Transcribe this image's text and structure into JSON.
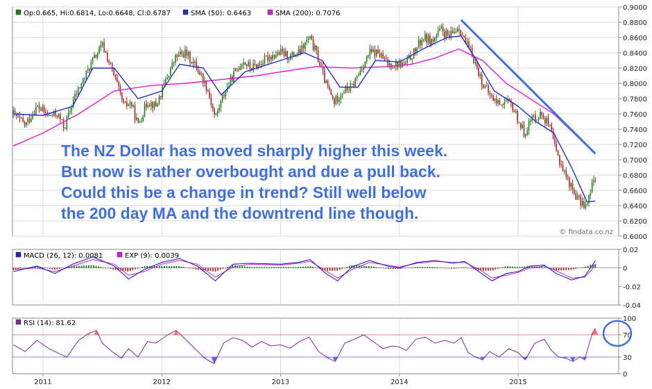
{
  "colors": {
    "up": "#1a7f1a",
    "down": "#b22222",
    "sma50": "#1f2fd0",
    "sma200": "#e020d8",
    "trendline": "#3f6fe0",
    "macd": "#2020c0",
    "exp": "#d020d0",
    "rsi": "#7a2a9a",
    "rsi_hot": "#ff7070",
    "rsi_cold": "#6060ff",
    "grid": "#d8d8d8"
  },
  "annotation": {
    "lines": [
      "The NZ Dollar has moved sharply higher this week.",
      "But now is rather overbought and due a pull back.",
      "Could this be a change in trend? Still well below",
      "the 200 day MA and the downtrend line though."
    ]
  },
  "watermark": "© findata.co.nz",
  "chart_data": [
    {
      "type": "candlestick",
      "legend": {
        "ohlc": "Op:0.665, Hi:0.6814, Lo:0.6648, Cl:0.6787",
        "sma50": "SMA (50): 0.6463",
        "sma200": "SMA (200): 0.7076"
      },
      "ylim": [
        0.6,
        0.9
      ],
      "y_ticks": [
        "0.9000",
        "0.8800",
        "0.8600",
        "0.8400",
        "0.8200",
        "0.8000",
        "0.7800",
        "0.7600",
        "0.7400",
        "0.7200",
        "0.7000",
        "0.6800",
        "0.6600",
        "0.6400",
        "0.6200",
        "0.6000"
      ],
      "x_ticks": [
        "2011",
        "2012",
        "2013",
        "2014",
        "2015"
      ],
      "price_path": [
        [
          2010.75,
          0.76
        ],
        [
          2010.85,
          0.745
        ],
        [
          2010.95,
          0.77
        ],
        [
          2011.05,
          0.757
        ],
        [
          2011.12,
          0.76
        ],
        [
          2011.18,
          0.742
        ],
        [
          2011.26,
          0.78
        ],
        [
          2011.34,
          0.805
        ],
        [
          2011.42,
          0.83
        ],
        [
          2011.5,
          0.85
        ],
        [
          2011.55,
          0.83
        ],
        [
          2011.62,
          0.8
        ],
        [
          2011.68,
          0.77
        ],
        [
          2011.74,
          0.775
        ],
        [
          2011.8,
          0.745
        ],
        [
          2011.88,
          0.777
        ],
        [
          2011.95,
          0.77
        ],
        [
          2012.05,
          0.81
        ],
        [
          2012.12,
          0.835
        ],
        [
          2012.2,
          0.84
        ],
        [
          2012.3,
          0.82
        ],
        [
          2012.38,
          0.795
        ],
        [
          2012.45,
          0.755
        ],
        [
          2012.52,
          0.785
        ],
        [
          2012.6,
          0.81
        ],
        [
          2012.68,
          0.83
        ],
        [
          2012.75,
          0.82
        ],
        [
          2012.82,
          0.825
        ],
        [
          2012.9,
          0.835
        ],
        [
          2013,
          0.84
        ],
        [
          2013.08,
          0.835
        ],
        [
          2013.16,
          0.84
        ],
        [
          2013.24,
          0.86
        ],
        [
          2013.3,
          0.84
        ],
        [
          2013.38,
          0.8
        ],
        [
          2013.45,
          0.775
        ],
        [
          2013.52,
          0.79
        ],
        [
          2013.6,
          0.795
        ],
        [
          2013.68,
          0.82
        ],
        [
          2013.75,
          0.84
        ],
        [
          2013.82,
          0.84
        ],
        [
          2013.9,
          0.825
        ],
        [
          2014,
          0.825
        ],
        [
          2014.05,
          0.825
        ],
        [
          2014.12,
          0.84
        ],
        [
          2014.2,
          0.86
        ],
        [
          2014.28,
          0.855
        ],
        [
          2014.35,
          0.87
        ],
        [
          2014.42,
          0.86
        ],
        [
          2014.5,
          0.875
        ],
        [
          2014.55,
          0.855
        ],
        [
          2014.62,
          0.835
        ],
        [
          2014.7,
          0.8
        ],
        [
          2014.76,
          0.785
        ],
        [
          2014.82,
          0.775
        ],
        [
          2014.9,
          0.775
        ],
        [
          2014.95,
          0.77
        ],
        [
          2015.05,
          0.735
        ],
        [
          2015.12,
          0.755
        ],
        [
          2015.2,
          0.76
        ],
        [
          2015.26,
          0.745
        ],
        [
          2015.32,
          0.71
        ],
        [
          2015.4,
          0.68
        ],
        [
          2015.46,
          0.66
        ],
        [
          2015.52,
          0.645
        ],
        [
          2015.58,
          0.64
        ],
        [
          2015.62,
          0.665
        ],
        [
          2015.65,
          0.679
        ]
      ],
      "sma50_path": [
        [
          2010.75,
          0.76
        ],
        [
          2011,
          0.758
        ],
        [
          2011.25,
          0.77
        ],
        [
          2011.42,
          0.82
        ],
        [
          2011.6,
          0.82
        ],
        [
          2011.8,
          0.78
        ],
        [
          2012,
          0.79
        ],
        [
          2012.15,
          0.825
        ],
        [
          2012.35,
          0.82
        ],
        [
          2012.5,
          0.785
        ],
        [
          2012.7,
          0.815
        ],
        [
          2013,
          0.83
        ],
        [
          2013.2,
          0.84
        ],
        [
          2013.35,
          0.83
        ],
        [
          2013.5,
          0.795
        ],
        [
          2013.65,
          0.795
        ],
        [
          2013.8,
          0.83
        ],
        [
          2014,
          0.828
        ],
        [
          2014.2,
          0.845
        ],
        [
          2014.4,
          0.86
        ],
        [
          2014.52,
          0.862
        ],
        [
          2014.65,
          0.83
        ],
        [
          2014.8,
          0.79
        ],
        [
          2015,
          0.77
        ],
        [
          2015.15,
          0.75
        ],
        [
          2015.3,
          0.735
        ],
        [
          2015.45,
          0.69
        ],
        [
          2015.58,
          0.645
        ],
        [
          2015.65,
          0.646
        ]
      ],
      "sma200_path": [
        [
          2010.75,
          0.718
        ],
        [
          2011,
          0.735
        ],
        [
          2011.3,
          0.76
        ],
        [
          2011.6,
          0.79
        ],
        [
          2011.9,
          0.797
        ],
        [
          2012.2,
          0.8
        ],
        [
          2012.5,
          0.805
        ],
        [
          2012.8,
          0.81
        ],
        [
          2013,
          0.815
        ],
        [
          2013.3,
          0.822
        ],
        [
          2013.6,
          0.82
        ],
        [
          2013.9,
          0.822
        ],
        [
          2014.1,
          0.825
        ],
        [
          2014.3,
          0.833
        ],
        [
          2014.5,
          0.845
        ],
        [
          2014.7,
          0.83
        ],
        [
          2014.9,
          0.8
        ],
        [
          2015.1,
          0.78
        ],
        [
          2015.3,
          0.76
        ],
        [
          2015.5,
          0.73
        ],
        [
          2015.65,
          0.708
        ]
      ],
      "trendline": [
        [
          2014.52,
          0.883
        ],
        [
          2015.65,
          0.708
        ]
      ]
    },
    {
      "type": "line",
      "legend": {
        "macd": "MACD (26, 12): 0.0081",
        "exp": "EXP (9): 0.0039"
      },
      "ylim": [
        -0.04,
        0.02
      ],
      "y_ticks": [
        "0.02",
        "0",
        "-0.02",
        "-0.04"
      ],
      "macd_path": [
        [
          2010.75,
          -0.004
        ],
        [
          2010.95,
          0.002
        ],
        [
          2011.1,
          -0.006
        ],
        [
          2011.25,
          0.004
        ],
        [
          2011.42,
          0.012
        ],
        [
          2011.6,
          0.002
        ],
        [
          2011.72,
          -0.012
        ],
        [
          2011.85,
          -0.002
        ],
        [
          2012,
          0.006
        ],
        [
          2012.15,
          0.01
        ],
        [
          2012.3,
          0.002
        ],
        [
          2012.45,
          -0.014
        ],
        [
          2012.6,
          0.004
        ],
        [
          2012.75,
          0.005
        ],
        [
          2013,
          0.004
        ],
        [
          2013.15,
          0.006
        ],
        [
          2013.25,
          0.009
        ],
        [
          2013.38,
          -0.006
        ],
        [
          2013.48,
          -0.014
        ],
        [
          2013.6,
          0.001
        ],
        [
          2013.75,
          0.008
        ],
        [
          2013.9,
          0.002
        ],
        [
          2014,
          0
        ],
        [
          2014.15,
          0.006
        ],
        [
          2014.3,
          0.008
        ],
        [
          2014.45,
          0.005
        ],
        [
          2014.55,
          0.007
        ],
        [
          2014.68,
          -0.005
        ],
        [
          2014.78,
          -0.014
        ],
        [
          2014.9,
          -0.006
        ],
        [
          2015,
          -0.004
        ],
        [
          2015.1,
          0.002
        ],
        [
          2015.22,
          0.003
        ],
        [
          2015.32,
          -0.006
        ],
        [
          2015.45,
          -0.013
        ],
        [
          2015.56,
          -0.009
        ],
        [
          2015.62,
          0.002
        ],
        [
          2015.65,
          0.0081
        ]
      ],
      "exp_path": [
        [
          2010.75,
          -0.002
        ],
        [
          2010.95,
          0
        ],
        [
          2011.1,
          -0.004
        ],
        [
          2011.25,
          0.002
        ],
        [
          2011.42,
          0.009
        ],
        [
          2011.6,
          0.004
        ],
        [
          2011.72,
          -0.008
        ],
        [
          2011.85,
          -0.004
        ],
        [
          2012,
          0.004
        ],
        [
          2012.15,
          0.008
        ],
        [
          2012.3,
          0.004
        ],
        [
          2012.45,
          -0.01
        ],
        [
          2012.6,
          0.001
        ],
        [
          2012.75,
          0.004
        ],
        [
          2013,
          0.003
        ],
        [
          2013.15,
          0.005
        ],
        [
          2013.25,
          0.007
        ],
        [
          2013.38,
          -0.003
        ],
        [
          2013.48,
          -0.011
        ],
        [
          2013.6,
          -0.002
        ],
        [
          2013.75,
          0.006
        ],
        [
          2013.9,
          0.003
        ],
        [
          2014,
          0.001
        ],
        [
          2014.15,
          0.005
        ],
        [
          2014.3,
          0.007
        ],
        [
          2014.45,
          0.006
        ],
        [
          2014.55,
          0.006
        ],
        [
          2014.68,
          -0.002
        ],
        [
          2014.78,
          -0.011
        ],
        [
          2014.9,
          -0.008
        ],
        [
          2015,
          -0.005
        ],
        [
          2015.1,
          0
        ],
        [
          2015.22,
          0.002
        ],
        [
          2015.32,
          -0.003
        ],
        [
          2015.45,
          -0.011
        ],
        [
          2015.56,
          -0.01
        ],
        [
          2015.62,
          -0.002
        ],
        [
          2015.65,
          0.0039
        ]
      ]
    },
    {
      "type": "line",
      "legend": {
        "rsi": "RSI (14): 81.62"
      },
      "ylim": [
        0,
        100
      ],
      "y_ticks": [
        "100",
        "70",
        "30",
        "0"
      ],
      "rsi_path": [
        [
          2010.75,
          52
        ],
        [
          2010.85,
          40
        ],
        [
          2010.95,
          60
        ],
        [
          2011.05,
          45
        ],
        [
          2011.12,
          38
        ],
        [
          2011.2,
          30
        ],
        [
          2011.3,
          60
        ],
        [
          2011.38,
          72
        ],
        [
          2011.45,
          78
        ],
        [
          2011.5,
          55
        ],
        [
          2011.58,
          40
        ],
        [
          2011.66,
          28
        ],
        [
          2011.72,
          45
        ],
        [
          2011.8,
          30
        ],
        [
          2011.88,
          58
        ],
        [
          2011.95,
          55
        ],
        [
          2012.05,
          70
        ],
        [
          2012.12,
          78
        ],
        [
          2012.2,
          62
        ],
        [
          2012.28,
          45
        ],
        [
          2012.36,
          28
        ],
        [
          2012.44,
          18
        ],
        [
          2012.52,
          55
        ],
        [
          2012.6,
          65
        ],
        [
          2012.68,
          60
        ],
        [
          2012.76,
          48
        ],
        [
          2012.84,
          58
        ],
        [
          2012.92,
          50
        ],
        [
          2013,
          52
        ],
        [
          2013.08,
          46
        ],
        [
          2013.16,
          58
        ],
        [
          2013.24,
          66
        ],
        [
          2013.32,
          40
        ],
        [
          2013.4,
          28
        ],
        [
          2013.46,
          22
        ],
        [
          2013.54,
          55
        ],
        [
          2013.62,
          62
        ],
        [
          2013.7,
          70
        ],
        [
          2013.78,
          58
        ],
        [
          2013.86,
          45
        ],
        [
          2013.94,
          50
        ],
        [
          2014,
          48
        ],
        [
          2014.06,
          42
        ],
        [
          2014.14,
          62
        ],
        [
          2014.22,
          66
        ],
        [
          2014.3,
          55
        ],
        [
          2014.38,
          60
        ],
        [
          2014.46,
          55
        ],
        [
          2014.52,
          65
        ],
        [
          2014.58,
          38
        ],
        [
          2014.64,
          30
        ],
        [
          2014.7,
          25
        ],
        [
          2014.76,
          40
        ],
        [
          2014.84,
          30
        ],
        [
          2014.92,
          45
        ],
        [
          2015,
          38
        ],
        [
          2015.06,
          25
        ],
        [
          2015.14,
          55
        ],
        [
          2015.22,
          62
        ],
        [
          2015.28,
          42
        ],
        [
          2015.34,
          30
        ],
        [
          2015.4,
          28
        ],
        [
          2015.46,
          22
        ],
        [
          2015.52,
          30
        ],
        [
          2015.56,
          25
        ],
        [
          2015.6,
          55
        ],
        [
          2015.63,
          75
        ],
        [
          2015.65,
          81.62
        ]
      ]
    }
  ]
}
